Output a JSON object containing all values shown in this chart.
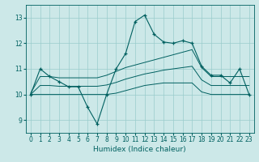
{
  "xlabel": "Humidex (Indice chaleur)",
  "background_color": "#cce8e8",
  "grid_color": "#99cccc",
  "line_color": "#006060",
  "xlim": [
    -0.5,
    23.5
  ],
  "ylim": [
    8.5,
    13.5
  ],
  "yticks": [
    9,
    10,
    11,
    12,
    13
  ],
  "xticks": [
    0,
    1,
    2,
    3,
    4,
    5,
    6,
    7,
    8,
    9,
    10,
    11,
    12,
    13,
    14,
    15,
    16,
    17,
    18,
    19,
    20,
    21,
    22,
    23
  ],
  "main": {
    "x": [
      0,
      1,
      2,
      3,
      4,
      5,
      6,
      7,
      8,
      9,
      10,
      11,
      12,
      13,
      14,
      15,
      16,
      17,
      18,
      19,
      20,
      21,
      22,
      23
    ],
    "y": [
      10.0,
      11.0,
      10.7,
      10.5,
      10.3,
      10.3,
      9.5,
      8.85,
      10.0,
      11.0,
      11.6,
      12.85,
      13.1,
      12.35,
      12.05,
      12.0,
      12.1,
      12.0,
      11.1,
      10.75,
      10.75,
      10.45,
      11.0,
      10.0
    ]
  },
  "upper": {
    "x": [
      0,
      1,
      2,
      3,
      4,
      5,
      6,
      7,
      8,
      9,
      10,
      11,
      12,
      13,
      14,
      15,
      16,
      17,
      18,
      19,
      20,
      21,
      22,
      23
    ],
    "y": [
      10.05,
      10.7,
      10.7,
      10.65,
      10.65,
      10.65,
      10.65,
      10.65,
      10.75,
      10.9,
      11.05,
      11.15,
      11.25,
      11.35,
      11.45,
      11.55,
      11.65,
      11.75,
      11.05,
      10.7,
      10.7,
      10.7,
      10.7,
      10.7
    ]
  },
  "lower": {
    "x": [
      0,
      1,
      2,
      3,
      4,
      5,
      6,
      7,
      8,
      9,
      10,
      11,
      12,
      13,
      14,
      15,
      16,
      17,
      18,
      19,
      20,
      21,
      22,
      23
    ],
    "y": [
      10.0,
      10.0,
      10.0,
      10.0,
      10.0,
      10.0,
      10.0,
      10.0,
      10.0,
      10.05,
      10.15,
      10.25,
      10.35,
      10.4,
      10.45,
      10.45,
      10.45,
      10.45,
      10.1,
      10.0,
      10.0,
      10.0,
      10.0,
      10.0
    ]
  },
  "mid": {
    "x": [
      0,
      1,
      2,
      3,
      4,
      5,
      6,
      7,
      8,
      9,
      10,
      11,
      12,
      13,
      14,
      15,
      16,
      17,
      18,
      19,
      20,
      21,
      22,
      23
    ],
    "y": [
      10.0,
      10.35,
      10.35,
      10.32,
      10.32,
      10.32,
      10.32,
      10.32,
      10.37,
      10.47,
      10.6,
      10.7,
      10.8,
      10.87,
      10.95,
      11.0,
      11.05,
      11.1,
      10.57,
      10.35,
      10.35,
      10.35,
      10.35,
      10.35
    ]
  }
}
